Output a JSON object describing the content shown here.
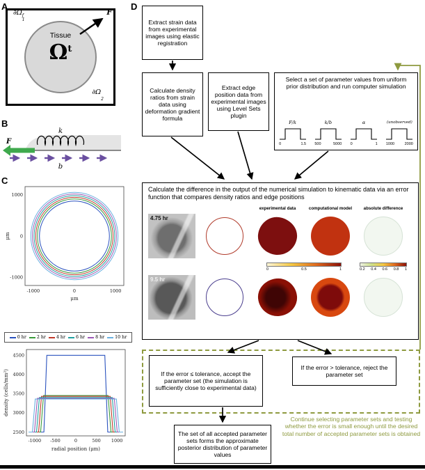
{
  "accent_green": "#8e9a3f",
  "panelA": {
    "label": "A",
    "tissue": "Tissue",
    "omega": "Ω",
    "omega_sup": "t",
    "boundary1_base": "∂Ω",
    "boundary1_sup": "f",
    "boundary1_sub": "1",
    "boundary2_base": "∂Ω",
    "boundary2_sub": "2",
    "force": "F"
  },
  "panelB": {
    "label": "B",
    "spring": "k",
    "force": "F",
    "drag": "b"
  },
  "panelC": {
    "label": "C",
    "circles_plot": {
      "xlabel": "μm",
      "ylabel": "μm",
      "xticks": [
        "-1000",
        "0",
        "1000"
      ],
      "yticks": [
        "1000",
        "0",
        "-1000"
      ]
    },
    "legend": [
      {
        "label": "0 hr",
        "color": "#2a52be"
      },
      {
        "label": "2 hr",
        "color": "#3a9a3a"
      },
      {
        "label": "4 hr",
        "color": "#c0392b"
      },
      {
        "label": "6 hr",
        "color": "#20a0a0"
      },
      {
        "label": "8 hr",
        "color": "#9b59b6"
      },
      {
        "label": "10 hr",
        "color": "#6ab0e0"
      }
    ],
    "density_plot": {
      "ylabel": "density (cells/mm²)",
      "xlabel": "radial position (μm)",
      "yticks": [
        "4500",
        "4000",
        "3500",
        "3000",
        "2500"
      ],
      "xticks": [
        "-1000",
        "-500",
        "0",
        "500",
        "1000"
      ]
    }
  },
  "panelD": {
    "label": "D"
  },
  "flow": {
    "box_extract_strain": "Extract strain data from experimental images using elastic registration",
    "box_density_ratios": "Calculate density ratios from strain data using deformation gradient formula",
    "box_edge_position": "Extract edge position data from experimental images using Level Sets plugin",
    "box_select_params": "Select a set of parameter values from uniform prior distribution and run computer simulation",
    "param_plots": [
      {
        "label": "F/k",
        "xmin": "0",
        "xmax": "1.5"
      },
      {
        "label": "k/b",
        "xmin": "500",
        "xmax": "5000"
      },
      {
        "label": "α",
        "xmin": "0",
        "xmax": "1"
      },
      {
        "label": "(unobserved)",
        "xmin": "1000",
        "xmax": "2000"
      }
    ],
    "box_error": "Calculate the difference in the output of the numerical simulation to kinematic data via an error function that compares density ratios and edge positions",
    "col_headers": [
      "experimental data",
      "computational model",
      "absolute difference"
    ],
    "rows": [
      {
        "time": "4.75 hr"
      },
      {
        "time": "9.5 hr"
      }
    ],
    "colorbar_error_ticks": [
      "0",
      "0.5",
      "1"
    ],
    "colorbar_diff_ticks": [
      "0.2",
      "0.4",
      "0.6",
      "0.8",
      "1"
    ],
    "box_accept": "If the error ≤ tolerance, accept the parameter set (the simulation is sufficiently close to experimental data)",
    "box_reject": "If the error > tolerance, reject the parameter set",
    "note_continue": "Continue selecting parameter sets and testing whether the error is small enough until the desired total number of accepted parameter sets is obtained",
    "box_posterior": "The set of all accepted parameter sets forms the approximate posterior distribution of parameter values"
  },
  "chart_data": [
    {
      "type": "line",
      "title": "tissue edge position over time (concentric circles)",
      "xlabel": "μm",
      "ylabel": "μm",
      "xlim": [
        -1200,
        1200
      ],
      "ylim": [
        -1200,
        1200
      ],
      "grid": false,
      "legend_position": "below",
      "series": [
        {
          "name": "0 hr",
          "circle_radius_um": 850
        },
        {
          "name": "2 hr",
          "circle_radius_um": 900
        },
        {
          "name": "4 hr",
          "circle_radius_um": 940
        },
        {
          "name": "6 hr",
          "circle_radius_um": 980
        },
        {
          "name": "8 hr",
          "circle_radius_um": 1020
        },
        {
          "name": "10 hr",
          "circle_radius_um": 1060
        }
      ]
    },
    {
      "type": "line",
      "title": "cell density profile vs radial position over time",
      "xlabel": "radial position (μm)",
      "ylabel": "density (cells/mm²)",
      "xlim": [
        -1200,
        1200
      ],
      "ylim": [
        2400,
        4650
      ],
      "grid": false,
      "series": [
        {
          "name": "0 hr",
          "plateau": 4500,
          "edge_um": 720,
          "baseline": 2500
        },
        {
          "name": "2 hr",
          "plateau": 3450,
          "edge_um": 800,
          "baseline": 2500
        },
        {
          "name": "4 hr",
          "plateau": 3430,
          "edge_um": 850,
          "baseline": 2500
        },
        {
          "name": "6 hr",
          "plateau": 3400,
          "edge_um": 900,
          "baseline": 2500
        },
        {
          "name": "8 hr",
          "plateau": 3380,
          "edge_um": 950,
          "baseline": 2500
        },
        {
          "name": "10 hr",
          "plateau": 3360,
          "edge_um": 1000,
          "baseline": 2500
        }
      ]
    },
    {
      "type": "line",
      "title": "uniform prior distributions of parameters",
      "series": [
        {
          "name": "F/k",
          "range": [
            0,
            1.5
          ]
        },
        {
          "name": "k/b",
          "range": [
            500,
            5000
          ]
        },
        {
          "name": "α",
          "range": [
            0,
            1
          ]
        },
        {
          "name": "(unobserved)",
          "range": [
            1000,
            2000
          ]
        }
      ]
    }
  ]
}
